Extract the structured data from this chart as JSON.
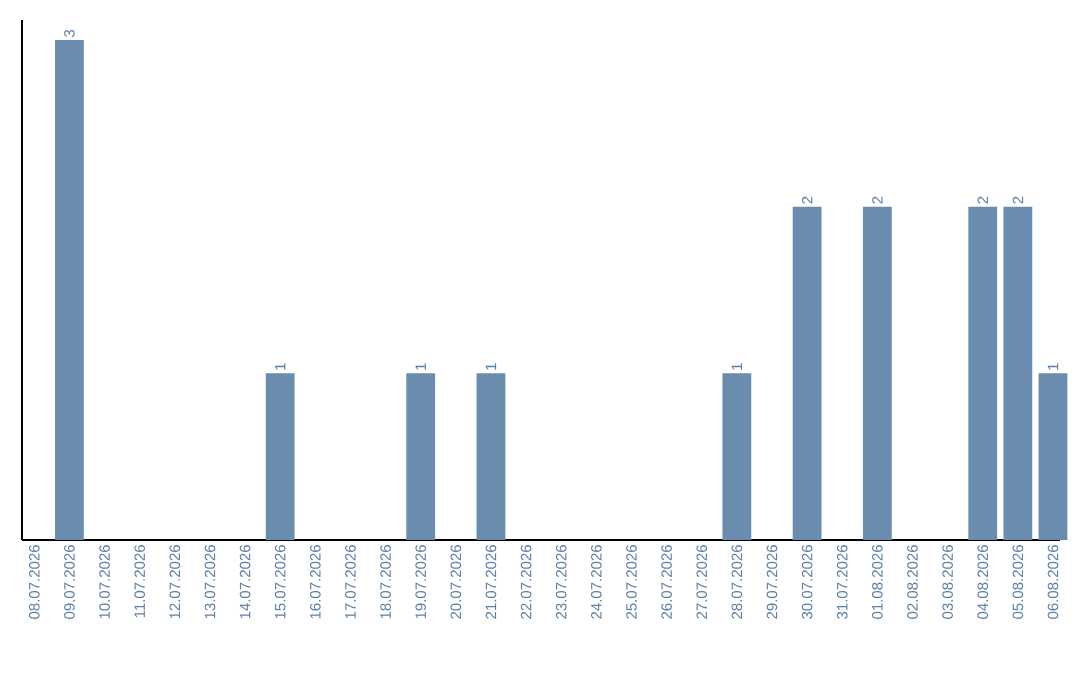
{
  "chart_data": {
    "type": "bar",
    "categories": [
      "08.07.2026",
      "09.07.2026",
      "10.07.2026",
      "11.07.2026",
      "12.07.2026",
      "13.07.2026",
      "14.07.2026",
      "15.07.2026",
      "16.07.2026",
      "17.07.2026",
      "18.07.2026",
      "19.07.2026",
      "20.07.2026",
      "21.07.2026",
      "22.07.2026",
      "23.07.2026",
      "24.07.2026",
      "25.07.2026",
      "26.07.2026",
      "27.07.2026",
      "28.07.2026",
      "29.07.2026",
      "30.07.2026",
      "31.07.2026",
      "01.08.2026",
      "02.08.2026",
      "03.08.2026",
      "04.08.2026",
      "05.08.2026",
      "06.08.2026"
    ],
    "values": [
      0,
      3,
      0,
      0,
      0,
      0,
      0,
      1,
      0,
      0,
      0,
      1,
      0,
      1,
      0,
      0,
      0,
      0,
      0,
      0,
      1,
      0,
      2,
      0,
      2,
      0,
      0,
      2,
      2,
      1
    ],
    "value_labels": [
      null,
      "3",
      null,
      null,
      null,
      null,
      null,
      "1",
      null,
      null,
      null,
      "1",
      null,
      "1",
      null,
      null,
      null,
      null,
      null,
      null,
      "1",
      null,
      "2",
      null,
      "2",
      null,
      null,
      "2",
      "2",
      "1"
    ],
    "color": "#6a8caf"
  }
}
